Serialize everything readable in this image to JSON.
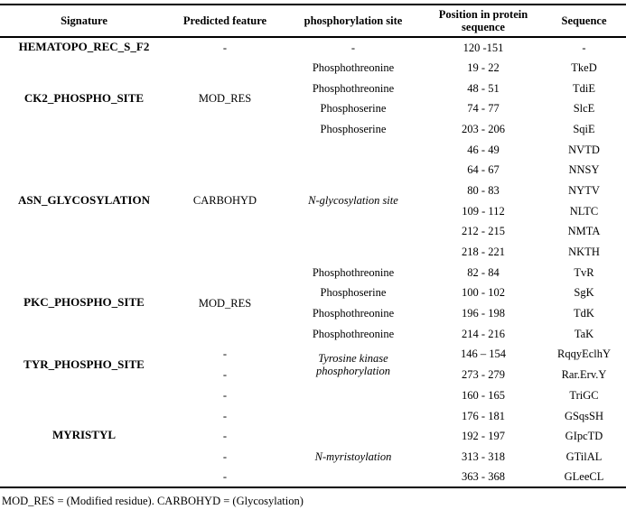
{
  "table": {
    "headers": [
      "Signature",
      "Predicted feature",
      "phosphorylation site",
      "Position in protein sequence",
      "Sequence"
    ],
    "groups": [
      {
        "signature": "HEMATOPO_REC_S_F2",
        "feature": "-",
        "rows": [
          {
            "site": "-",
            "position": "120 -151",
            "sequence": "-"
          }
        ]
      },
      {
        "signature": "CK2_PHOSPHO_SITE",
        "feature": "MOD_RES",
        "rows": [
          {
            "site": "Phosphothreonine",
            "position": "19 - 22",
            "sequence": "TkeD"
          },
          {
            "site": "Phosphothreonine",
            "position": "48 - 51",
            "sequence": "TdiE"
          },
          {
            "site": "Phosphoserine",
            "position": "74 - 77",
            "sequence": "SlcE"
          },
          {
            "site": "Phosphoserine",
            "position": "203 - 206",
            "sequence": "SqiE"
          }
        ]
      },
      {
        "signature": "ASN_GLYCOSYLATION",
        "feature": "CARBOHYD",
        "site": "N-glycosylation site",
        "rows": [
          {
            "position": "46 - 49",
            "sequence": "NVTD"
          },
          {
            "position": "64 - 67",
            "sequence": "NNSY"
          },
          {
            "position": "80 - 83",
            "sequence": "NYTV"
          },
          {
            "position": "109 - 112",
            "sequence": "NLTC"
          },
          {
            "position": "212 - 215",
            "sequence": "NMTA"
          },
          {
            "position": "218 - 221",
            "sequence": "NKTH"
          }
        ]
      },
      {
        "signature": "PKC_PHOSPHO_SITE",
        "feature": "MOD_RES",
        "rows": [
          {
            "site": "Phosphothreonine",
            "position": "82 - 84",
            "sequence": "TvR"
          },
          {
            "site": "Phosphoserine",
            "position": "100 - 102",
            "sequence": "SgK"
          },
          {
            "site": "Phosphothreonine",
            "position": "196 - 198",
            "sequence": "TdK"
          },
          {
            "site": "Phosphothreonine",
            "position": "214 - 216",
            "sequence": "TaK"
          }
        ]
      },
      {
        "signature": "TYR_PHOSPHO_SITE",
        "site": "Tyrosine kinase phosphorylation",
        "rows": [
          {
            "feature": "-",
            "position": "146 – 154",
            "sequence": "RqqyEclhY"
          },
          {
            "feature": "-",
            "position": "273 - 279",
            "sequence": "Rar.Erv.Y"
          }
        ]
      },
      {
        "signature": "MYRISTYL",
        "rows": [
          {
            "feature": "-",
            "site": "",
            "position": "160 - 165",
            "sequence": "TriGC"
          },
          {
            "feature": "-",
            "site": "",
            "position": "176 - 181",
            "sequence": "GSqsSH"
          },
          {
            "feature": "-",
            "site": "",
            "position": "192 - 197",
            "sequence": "GIpcTD"
          },
          {
            "feature": "-",
            "site": "N-myristoylation",
            "position": "313 - 318",
            "sequence": "GTilAL"
          },
          {
            "feature": "-",
            "site": "",
            "position": "363 - 368",
            "sequence": "GLeeCL"
          }
        ]
      }
    ],
    "footnote": "MOD_RES = (Modified residue). CARBOHYD = (Glycosylation)"
  }
}
